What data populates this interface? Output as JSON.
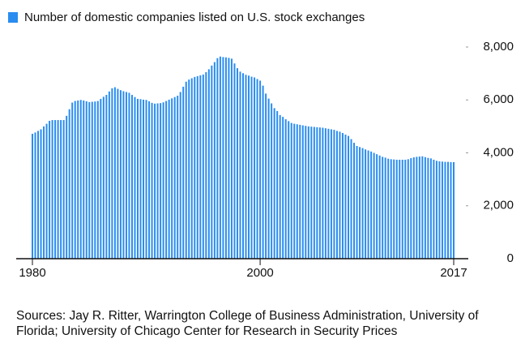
{
  "chart_data": {
    "type": "bar",
    "legend": "top-left",
    "source": "Sources: Jay R. Ritter, Warrington College of Business Administration, University of Florida; University of Chicago Center for Research in Security Prices",
    "categories": [
      "1980",
      null,
      null,
      null,
      null,
      null,
      null,
      null,
      null,
      null,
      null,
      null,
      null,
      null,
      null,
      null,
      null,
      null,
      null,
      null,
      null,
      null,
      null,
      null,
      null,
      null,
      null,
      null,
      null,
      null,
      null,
      null,
      null,
      null,
      null,
      null,
      null,
      null,
      null,
      null,
      null,
      null,
      null,
      null,
      null,
      null,
      null,
      null,
      null,
      null,
      null,
      null,
      null,
      null,
      null,
      null,
      null,
      null,
      null,
      null,
      null,
      null,
      null,
      null,
      null,
      null,
      null,
      null,
      null,
      null,
      null,
      null,
      null,
      null,
      null,
      null,
      null,
      null,
      null,
      null,
      "2000",
      null,
      null,
      null,
      null,
      null,
      null,
      null,
      null,
      null,
      null,
      null,
      null,
      null,
      null,
      null,
      null,
      null,
      null,
      null,
      null,
      null,
      null,
      null,
      null,
      null,
      null,
      null,
      null,
      null,
      null,
      null,
      null,
      null,
      null,
      null,
      null,
      null,
      null,
      null,
      null,
      null,
      null,
      null,
      null,
      null,
      null,
      null,
      null,
      null,
      null,
      null,
      null,
      null,
      null,
      null,
      null,
      null,
      null,
      null,
      null,
      null,
      null,
      null,
      null,
      null,
      null,
      null,
      "2017"
    ],
    "series": [
      {
        "name": "Number of domestic companies listed on U.S. stock exchanges",
        "color": "#2a8cf0",
        "values": [
          4720,
          4770,
          4830,
          4890,
          5000,
          5100,
          5210,
          5240,
          5240,
          5240,
          5240,
          5240,
          5400,
          5650,
          5900,
          5960,
          5980,
          6000,
          5980,
          5950,
          5920,
          5930,
          5940,
          5960,
          6040,
          6120,
          6190,
          6320,
          6440,
          6480,
          6420,
          6370,
          6330,
          6300,
          6270,
          6190,
          6110,
          6040,
          6030,
          6010,
          6000,
          5950,
          5890,
          5860,
          5870,
          5880,
          5910,
          5960,
          6010,
          6060,
          6110,
          6160,
          6300,
          6500,
          6690,
          6770,
          6820,
          6870,
          6900,
          6930,
          6960,
          7050,
          7160,
          7300,
          7430,
          7580,
          7640,
          7620,
          7610,
          7590,
          7560,
          7380,
          7200,
          7070,
          7010,
          6950,
          6920,
          6880,
          6850,
          6790,
          6730,
          6540,
          6240,
          6050,
          5870,
          5690,
          5580,
          5430,
          5360,
          5270,
          5200,
          5130,
          5100,
          5080,
          5060,
          5040,
          5020,
          5000,
          4990,
          4980,
          4970,
          4960,
          4950,
          4930,
          4910,
          4890,
          4870,
          4830,
          4800,
          4750,
          4690,
          4640,
          4520,
          4380,
          4260,
          4220,
          4180,
          4130,
          4090,
          4050,
          4000,
          3950,
          3900,
          3850,
          3820,
          3780,
          3760,
          3750,
          3740,
          3740,
          3740,
          3740,
          3760,
          3800,
          3830,
          3850,
          3860,
          3870,
          3840,
          3810,
          3790,
          3740,
          3700,
          3680,
          3670,
          3660,
          3660,
          3650,
          3650
        ]
      }
    ],
    "ylim": [
      0,
      8000
    ],
    "yticks": [
      0,
      {
        "value": 2000,
        "label": "2,000"
      },
      {
        "value": 4000,
        "label": "4,000"
      },
      {
        "value": 6000,
        "label": "6,000"
      },
      {
        "value": 8000,
        "label": "8,000"
      }
    ]
  }
}
